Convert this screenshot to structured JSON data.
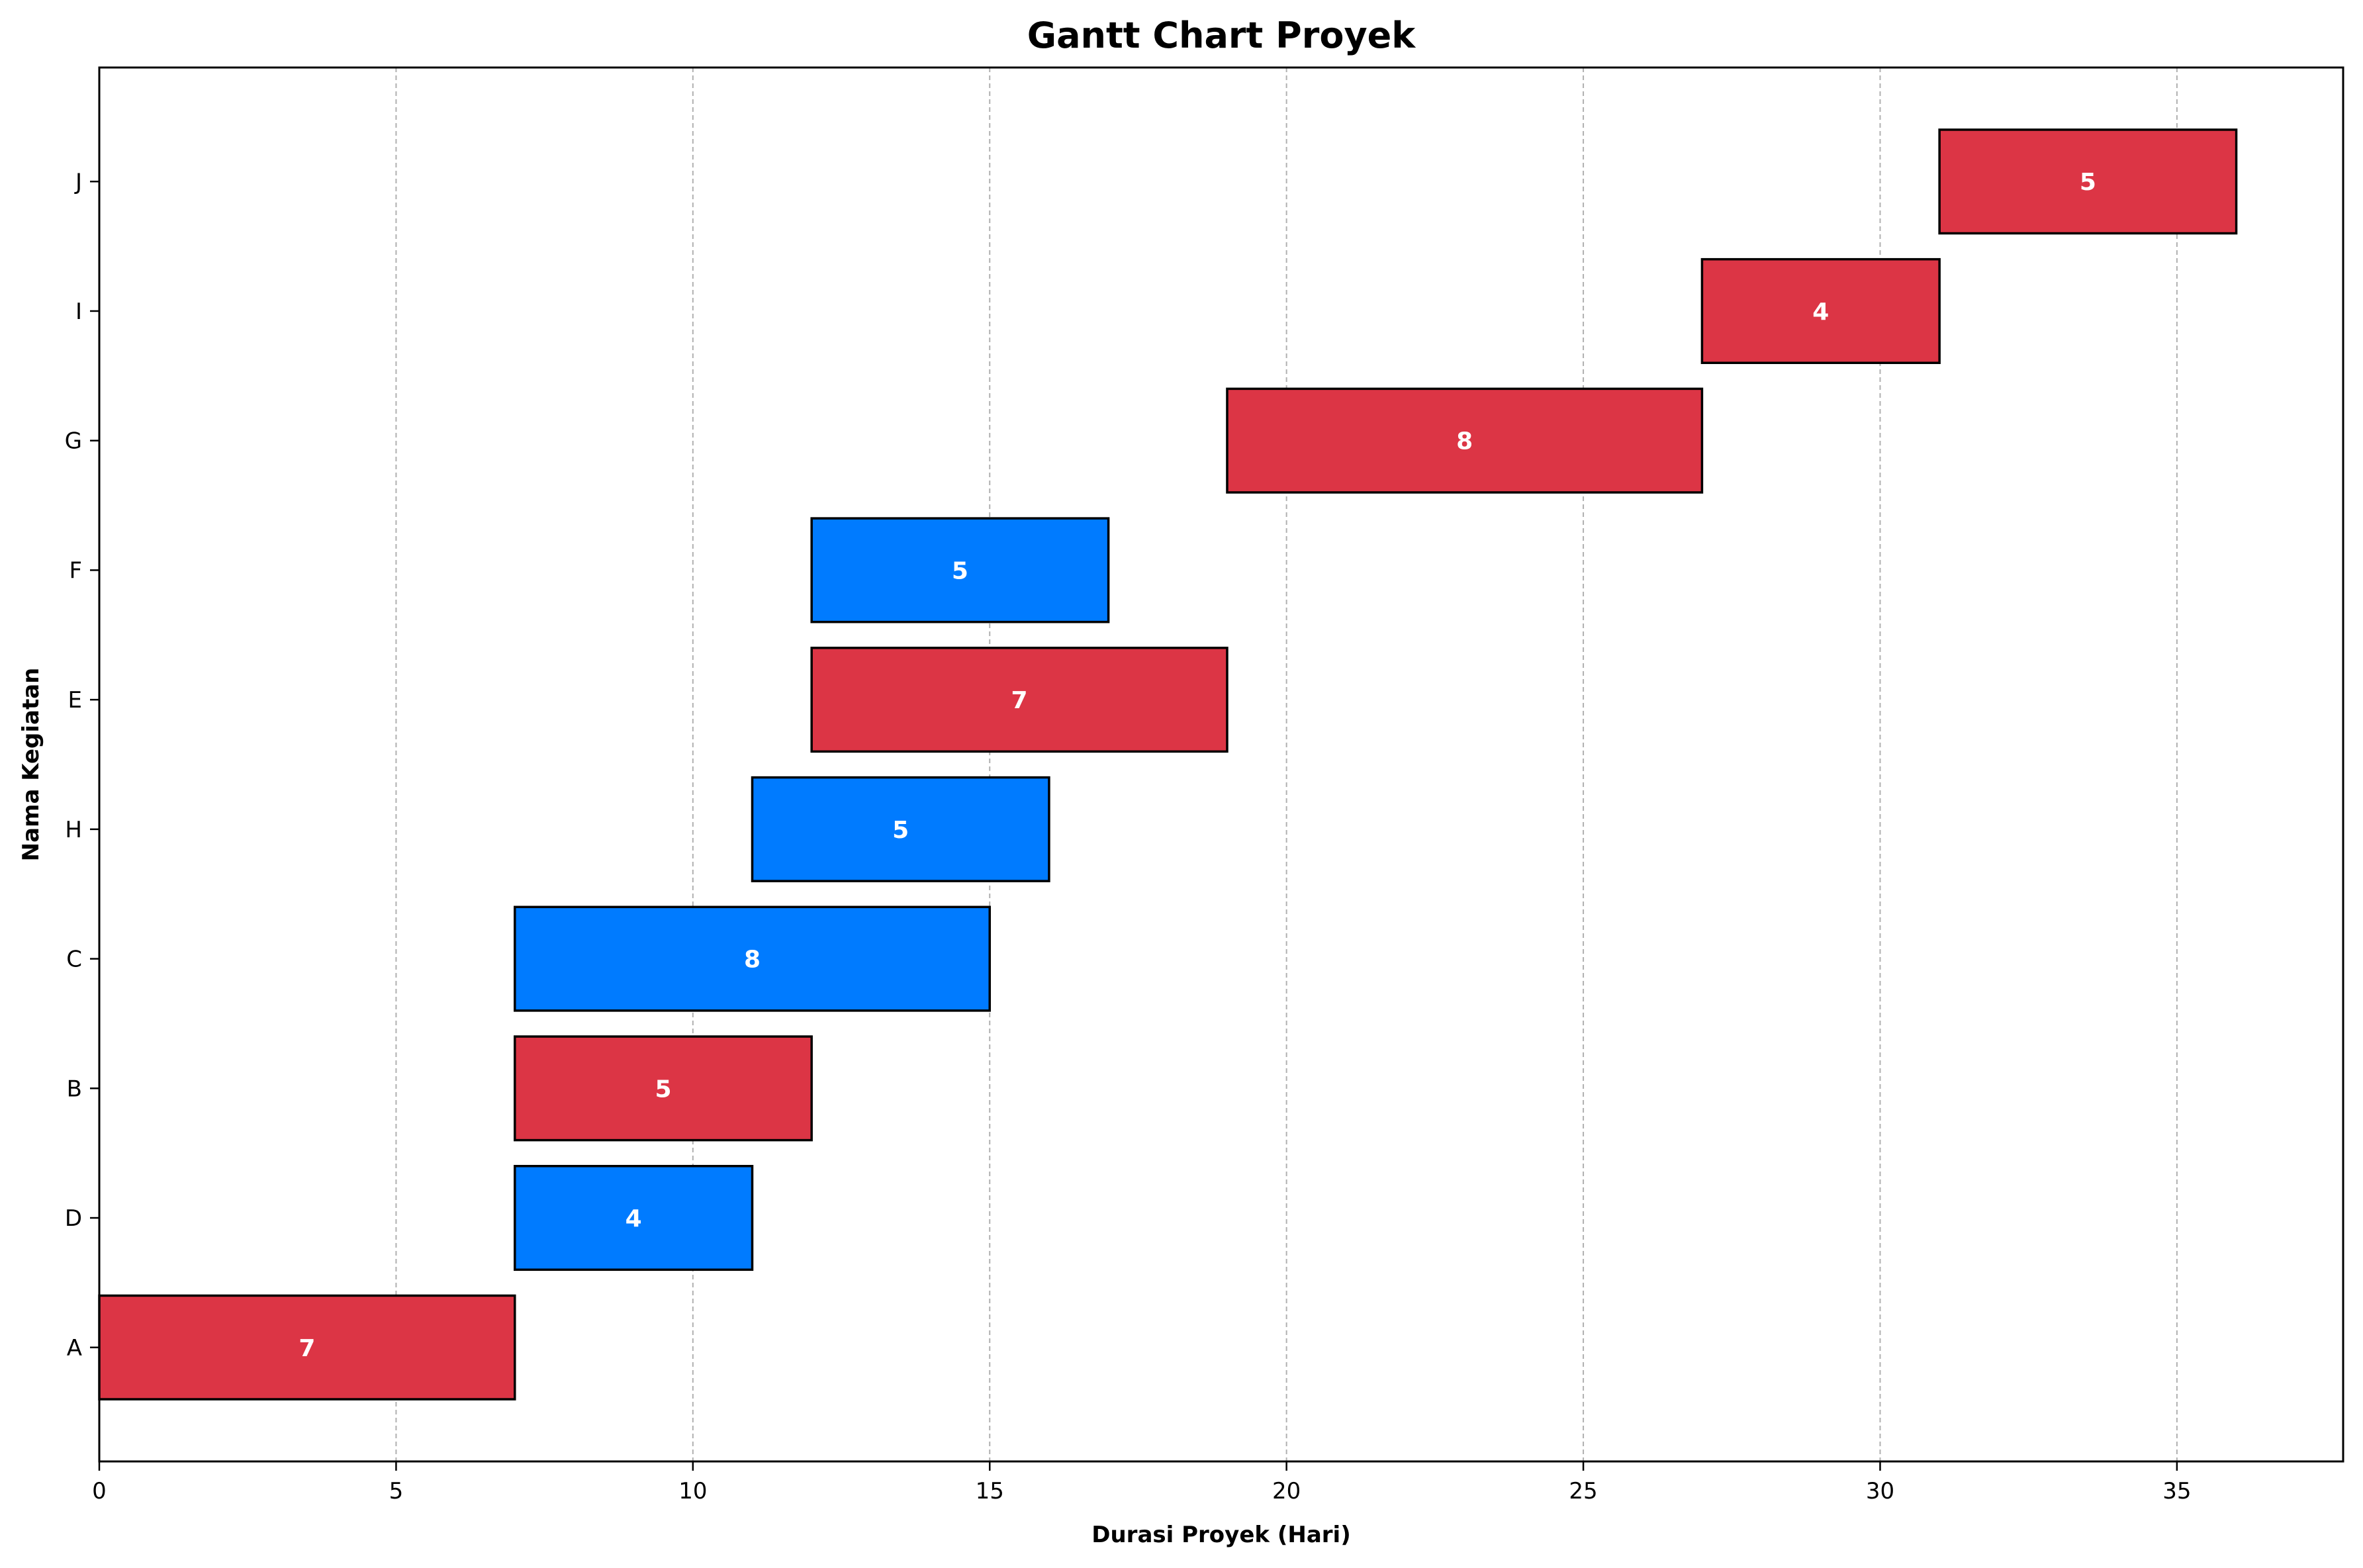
{
  "chart_data": {
    "type": "bar",
    "orientation": "horizontal",
    "title": "Gantt Chart Proyek",
    "xlabel": "Durasi Proyek (Hari)",
    "ylabel": "Nama Kegiatan",
    "xlim": [
      0,
      37.8
    ],
    "xticks": [
      0,
      5,
      10,
      15,
      20,
      25,
      30,
      35
    ],
    "grid": "x-dashed",
    "legend": "none",
    "tasks": [
      {
        "name": "A",
        "start": 0,
        "duration": 7,
        "color": "#dc3545",
        "label": "7"
      },
      {
        "name": "D",
        "start": 7,
        "duration": 4,
        "color": "#007bff",
        "label": "4"
      },
      {
        "name": "B",
        "start": 7,
        "duration": 5,
        "color": "#dc3545",
        "label": "5"
      },
      {
        "name": "C",
        "start": 7,
        "duration": 8,
        "color": "#007bff",
        "label": "8"
      },
      {
        "name": "H",
        "start": 11,
        "duration": 5,
        "color": "#007bff",
        "label": "5"
      },
      {
        "name": "E",
        "start": 12,
        "duration": 7,
        "color": "#dc3545",
        "label": "7"
      },
      {
        "name": "F",
        "start": 12,
        "duration": 5,
        "color": "#007bff",
        "label": "5"
      },
      {
        "name": "G",
        "start": 19,
        "duration": 8,
        "color": "#dc3545",
        "label": "8"
      },
      {
        "name": "I",
        "start": 27,
        "duration": 4,
        "color": "#dc3545",
        "label": "4"
      },
      {
        "name": "J",
        "start": 31,
        "duration": 5,
        "color": "#dc3545",
        "label": "5"
      }
    ]
  }
}
